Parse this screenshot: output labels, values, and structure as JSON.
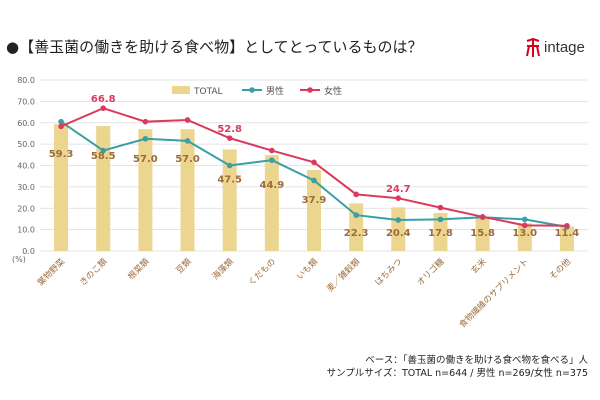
{
  "title": "●【善玉菌の働きを助ける食べ物】としてとっているものは？",
  "logo": {
    "text": "intage",
    "accent": "#d9001b"
  },
  "footnote": {
    "line1": "ベース：「善玉菌の働きを助ける食べ物を食べる」人",
    "line2": "サンプルサイズ：TOTAL n=644 / 男性 n=269/女性 n=375"
  },
  "chart_data": {
    "type": "bar",
    "categories": [
      "葉物野菜",
      "きのこ類",
      "根菜類",
      "豆類",
      "海藻類",
      "くだもの",
      "いも類",
      "麦／雑穀類",
      "はちみつ",
      "オリゴ糖",
      "玄米",
      "食物繊維のサプリメント",
      "その他"
    ],
    "series": [
      {
        "name": "TOTAL",
        "type": "bar",
        "color": "#ecd58f",
        "values": [
          59.3,
          58.5,
          57.0,
          57.0,
          47.5,
          44.9,
          37.9,
          22.3,
          20.4,
          17.8,
          15.8,
          13.0,
          11.4
        ]
      },
      {
        "name": "男性",
        "type": "line",
        "color": "#3a9ea5",
        "values": [
          60.5,
          47.0,
          52.5,
          51.5,
          40.0,
          42.5,
          33.0,
          16.8,
          14.5,
          14.8,
          15.8,
          14.8,
          11.3
        ]
      },
      {
        "name": "女性",
        "type": "line",
        "color": "#d93b5f",
        "values": [
          58.3,
          66.8,
          60.5,
          61.3,
          52.8,
          47.0,
          41.5,
          26.5,
          24.7,
          20.3,
          16.0,
          12.0,
          11.8
        ]
      }
    ],
    "highlighted_labels": {
      "女性": {
        "1": "66.8",
        "4": "52.8",
        "8": "24.7"
      }
    },
    "bar_label_color": "#9c6b3a",
    "ylabel": "(%)",
    "ylim": [
      0,
      80
    ],
    "yticks": [
      "0.0",
      "10.0",
      "20.0",
      "30.0",
      "40.0",
      "50.0",
      "60.0",
      "70.0",
      "80.0"
    ],
    "grid": true,
    "legend": "top"
  }
}
